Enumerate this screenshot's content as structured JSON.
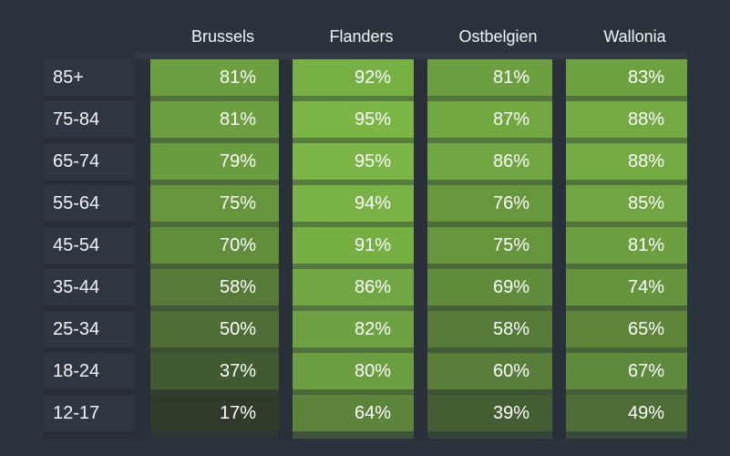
{
  "chart_data": {
    "type": "heatmap",
    "rows": [
      "85+",
      "75-84",
      "65-74",
      "55-64",
      "45-54",
      "35-44",
      "25-34",
      "18-24",
      "12-17"
    ],
    "columns": [
      "Brussels",
      "Flanders",
      "Ostbelgien",
      "Wallonia"
    ],
    "series": [
      {
        "name": "Brussels",
        "values": [
          81,
          81,
          79,
          75,
          70,
          58,
          50,
          37,
          17
        ]
      },
      {
        "name": "Flanders",
        "values": [
          92,
          95,
          95,
          94,
          91,
          86,
          82,
          80,
          64
        ]
      },
      {
        "name": "Ostbelgien",
        "values": [
          81,
          87,
          86,
          76,
          75,
          69,
          58,
          60,
          39
        ]
      },
      {
        "name": "Wallonia",
        "values": [
          83,
          88,
          88,
          85,
          81,
          74,
          65,
          67,
          49
        ]
      }
    ],
    "value_suffix": "%",
    "value_range": [
      17,
      95
    ],
    "legend": "none",
    "grid": "off",
    "color_scale": {
      "min_value": 17,
      "max_value": 95,
      "min_color": "#2f3a2a",
      "max_color": "#7ab545"
    }
  },
  "theme": {
    "background": "#2b333d",
    "column_track": "#29303a",
    "top_strip": "#343a44",
    "label_cell_background": "#2f3641",
    "label_gap": "#272c35",
    "row_gap_dark": "#252b33",
    "header_text": "#f2f5f5",
    "label_text": "#f2f5f5",
    "value_text": "#ffffff"
  }
}
